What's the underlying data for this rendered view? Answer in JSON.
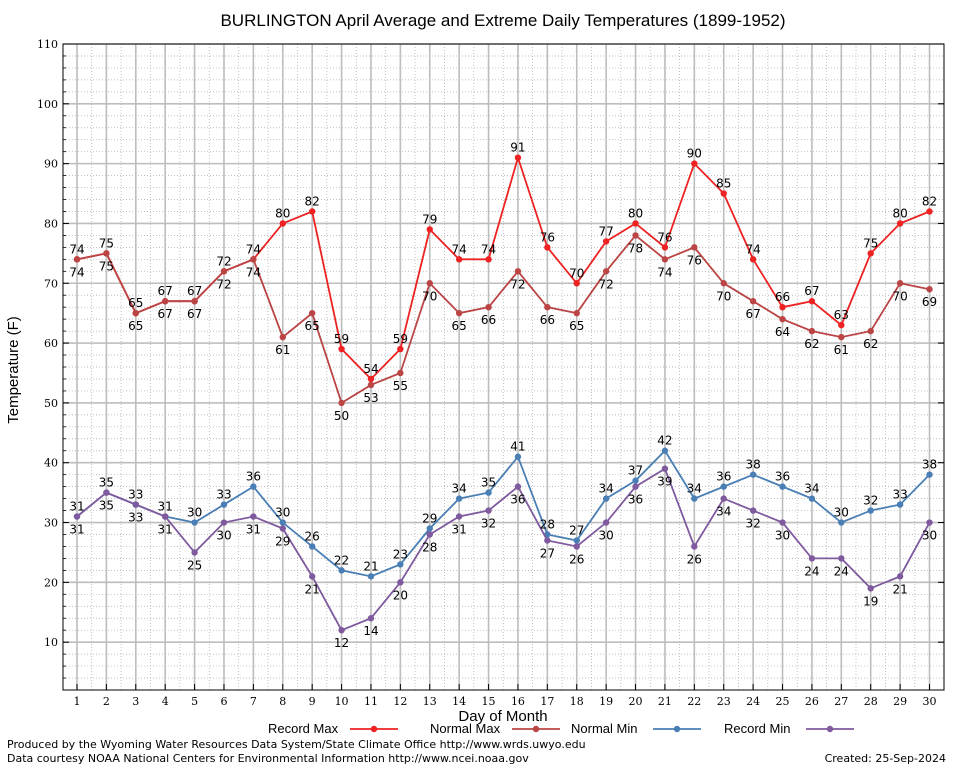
{
  "chart_data": {
    "type": "line",
    "title": "BURLINGTON April Average and Extreme Daily Temperatures (1899-1952)",
    "xlabel": "Day of Month",
    "ylabel": "Temperature (F)",
    "xlim": [
      1,
      30
    ],
    "ylim": [
      2,
      110
    ],
    "yticks": [
      10,
      20,
      30,
      40,
      50,
      60,
      70,
      80,
      90,
      100,
      110
    ],
    "x": [
      1,
      2,
      3,
      4,
      5,
      6,
      7,
      8,
      9,
      10,
      11,
      12,
      13,
      14,
      15,
      16,
      17,
      18,
      19,
      20,
      21,
      22,
      23,
      24,
      25,
      26,
      27,
      28,
      29,
      30
    ],
    "grid": true,
    "legend_position": "bottom",
    "series": [
      {
        "name": "Record Max",
        "color": "#ee2222",
        "label_pos": "above",
        "values": [
          74,
          75,
          65,
          67,
          67,
          72,
          74,
          80,
          82,
          59,
          54,
          59,
          79,
          74,
          74,
          91,
          76,
          70,
          77,
          80,
          76,
          90,
          85,
          74,
          66,
          67,
          63,
          75,
          80,
          82
        ]
      },
      {
        "name": "Normal Max",
        "color": "#bb4444",
        "label_pos": "below",
        "values": [
          74,
          75,
          65,
          67,
          67,
          72,
          74,
          61,
          65,
          50,
          53,
          55,
          70,
          65,
          66,
          72,
          66,
          65,
          72,
          78,
          74,
          76,
          70,
          67,
          64,
          62,
          61,
          62,
          70,
          69
        ]
      },
      {
        "name": "Normal Min",
        "color": "#4a7fb5",
        "label_pos": "above",
        "values": [
          31,
          35,
          33,
          31,
          30,
          33,
          36,
          30,
          26,
          22,
          21,
          23,
          29,
          34,
          35,
          41,
          28,
          27,
          34,
          37,
          42,
          34,
          36,
          38,
          36,
          34,
          30,
          32,
          33,
          38
        ]
      },
      {
        "name": "Record Min",
        "color": "#7f5a9e",
        "label_pos": "below",
        "values": [
          31,
          35,
          33,
          31,
          25,
          30,
          31,
          29,
          21,
          12,
          14,
          20,
          28,
          31,
          32,
          36,
          27,
          26,
          30,
          36,
          39,
          26,
          34,
          32,
          30,
          24,
          24,
          19,
          21,
          30
        ]
      }
    ]
  },
  "footer": {
    "produced_by": "Produced by the Wyoming Water Resources Data System/State Climate Office http://www.wrds.uwyo.edu",
    "courtesy": "Data courtesy NOAA National Centers for Environmental Information http://www.ncei.noaa.gov",
    "created": "Created:  25-Sep-2024"
  }
}
